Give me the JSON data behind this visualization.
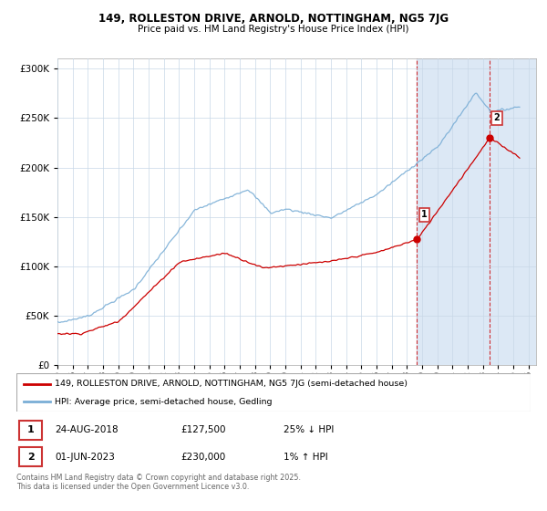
{
  "title": "149, ROLLESTON DRIVE, ARNOLD, NOTTINGHAM, NG5 7JG",
  "subtitle": "Price paid vs. HM Land Registry's House Price Index (HPI)",
  "ylim": [
    0,
    310000
  ],
  "xlim_start": 1995.0,
  "xlim_end": 2026.5,
  "red_color": "#cc0000",
  "blue_color": "#7aaed6",
  "shade_color": "#dce8f5",
  "marker1_date": 2018.65,
  "marker1_price": 127500,
  "marker2_date": 2023.42,
  "marker2_price": 230000,
  "legend_red": "149, ROLLESTON DRIVE, ARNOLD, NOTTINGHAM, NG5 7JG (semi-detached house)",
  "legend_blue": "HPI: Average price, semi-detached house, Gedling",
  "row1_num": "1",
  "row1_date": "24-AUG-2018",
  "row1_price": "£127,500",
  "row1_hpi": "25% ↓ HPI",
  "row2_num": "2",
  "row2_date": "01-JUN-2023",
  "row2_price": "£230,000",
  "row2_hpi": "1% ↑ HPI",
  "footnote_line1": "Contains HM Land Registry data © Crown copyright and database right 2025.",
  "footnote_line2": "This data is licensed under the Open Government Licence v3.0.",
  "bg_color": "#ffffff",
  "grid_color": "#c8d8e8",
  "border_color": "#cc3333"
}
